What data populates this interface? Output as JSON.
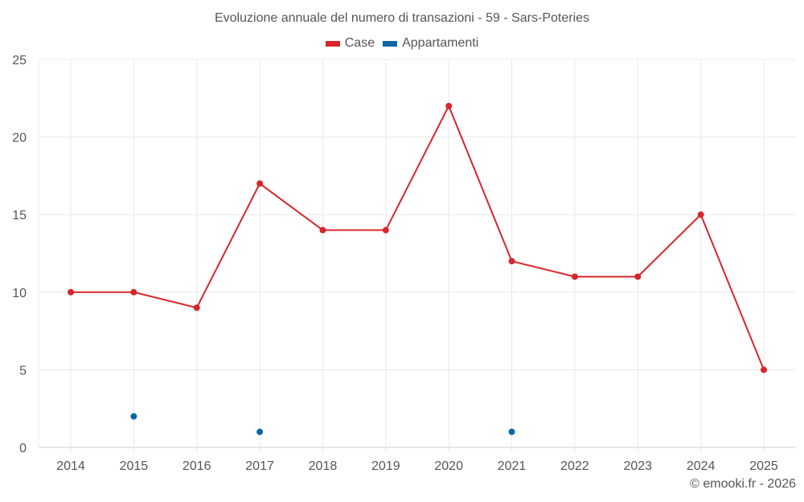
{
  "chart_data": {
    "type": "line",
    "title": "Evoluzione annuale del numero di transazioni - 59 - Sars-Poteries",
    "categories": [
      "2014",
      "2015",
      "2016",
      "2017",
      "2018",
      "2019",
      "2020",
      "2021",
      "2022",
      "2023",
      "2024",
      "2025"
    ],
    "series": [
      {
        "name": "Case",
        "color": "#d7262b",
        "values": [
          10,
          10,
          9,
          17,
          14,
          14,
          22,
          12,
          11,
          11,
          15,
          5
        ]
      },
      {
        "name": "Appartamenti",
        "color": "#0a67a3",
        "values": [
          null,
          2,
          null,
          1,
          null,
          null,
          null,
          1,
          null,
          null,
          null,
          null
        ]
      }
    ],
    "xlabel": "",
    "ylabel": "",
    "ylim": [
      0,
      25
    ],
    "yticks": [
      0,
      5,
      10,
      15,
      20,
      25
    ],
    "grid": true,
    "legend_position": "top"
  },
  "credit": "© emooki.fr - 2026"
}
